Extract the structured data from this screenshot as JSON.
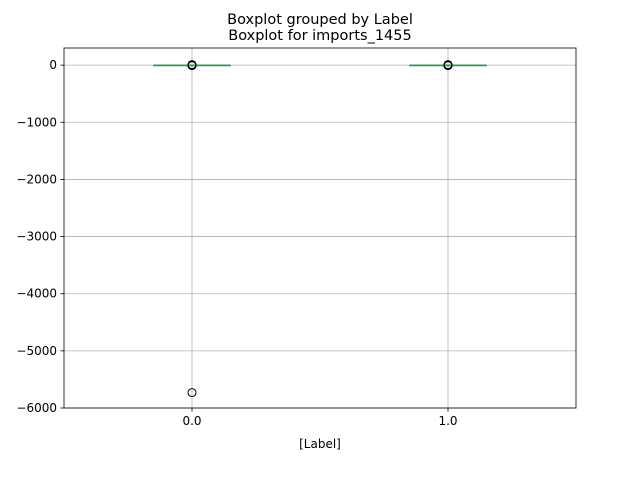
{
  "chart_data": {
    "type": "box",
    "suptitle": "Boxplot grouped by Label",
    "title": "Boxplot for imports_1455",
    "xlabel": "[Label]",
    "ylabel": "",
    "categories": [
      "0.0",
      "1.0"
    ],
    "ylim": [
      -6000,
      300
    ],
    "yticks": [
      0,
      -1000,
      -2000,
      -3000,
      -4000,
      -5000,
      -6000
    ],
    "ytick_labels": [
      "0",
      "−1000",
      "−2000",
      "−3000",
      "−4000",
      "−5000",
      "−6000"
    ],
    "grid": true,
    "boxes": [
      {
        "category": "0.0",
        "whislo": 0,
        "q1": 0,
        "median": 0,
        "q3": 0,
        "whishi": 0,
        "fliers": [
          -5730,
          -8,
          -4,
          4,
          8
        ]
      },
      {
        "category": "1.0",
        "whislo": 0,
        "q1": 0,
        "median": 0,
        "q3": 0,
        "whishi": 0,
        "fliers": [
          -8,
          -4,
          4,
          8
        ]
      }
    ],
    "colors": {
      "box": "#1f77b4",
      "median": "#2ca02c",
      "whisker": "#1f77b4",
      "flier": "#000000",
      "grid": "#b0b0b0"
    }
  }
}
